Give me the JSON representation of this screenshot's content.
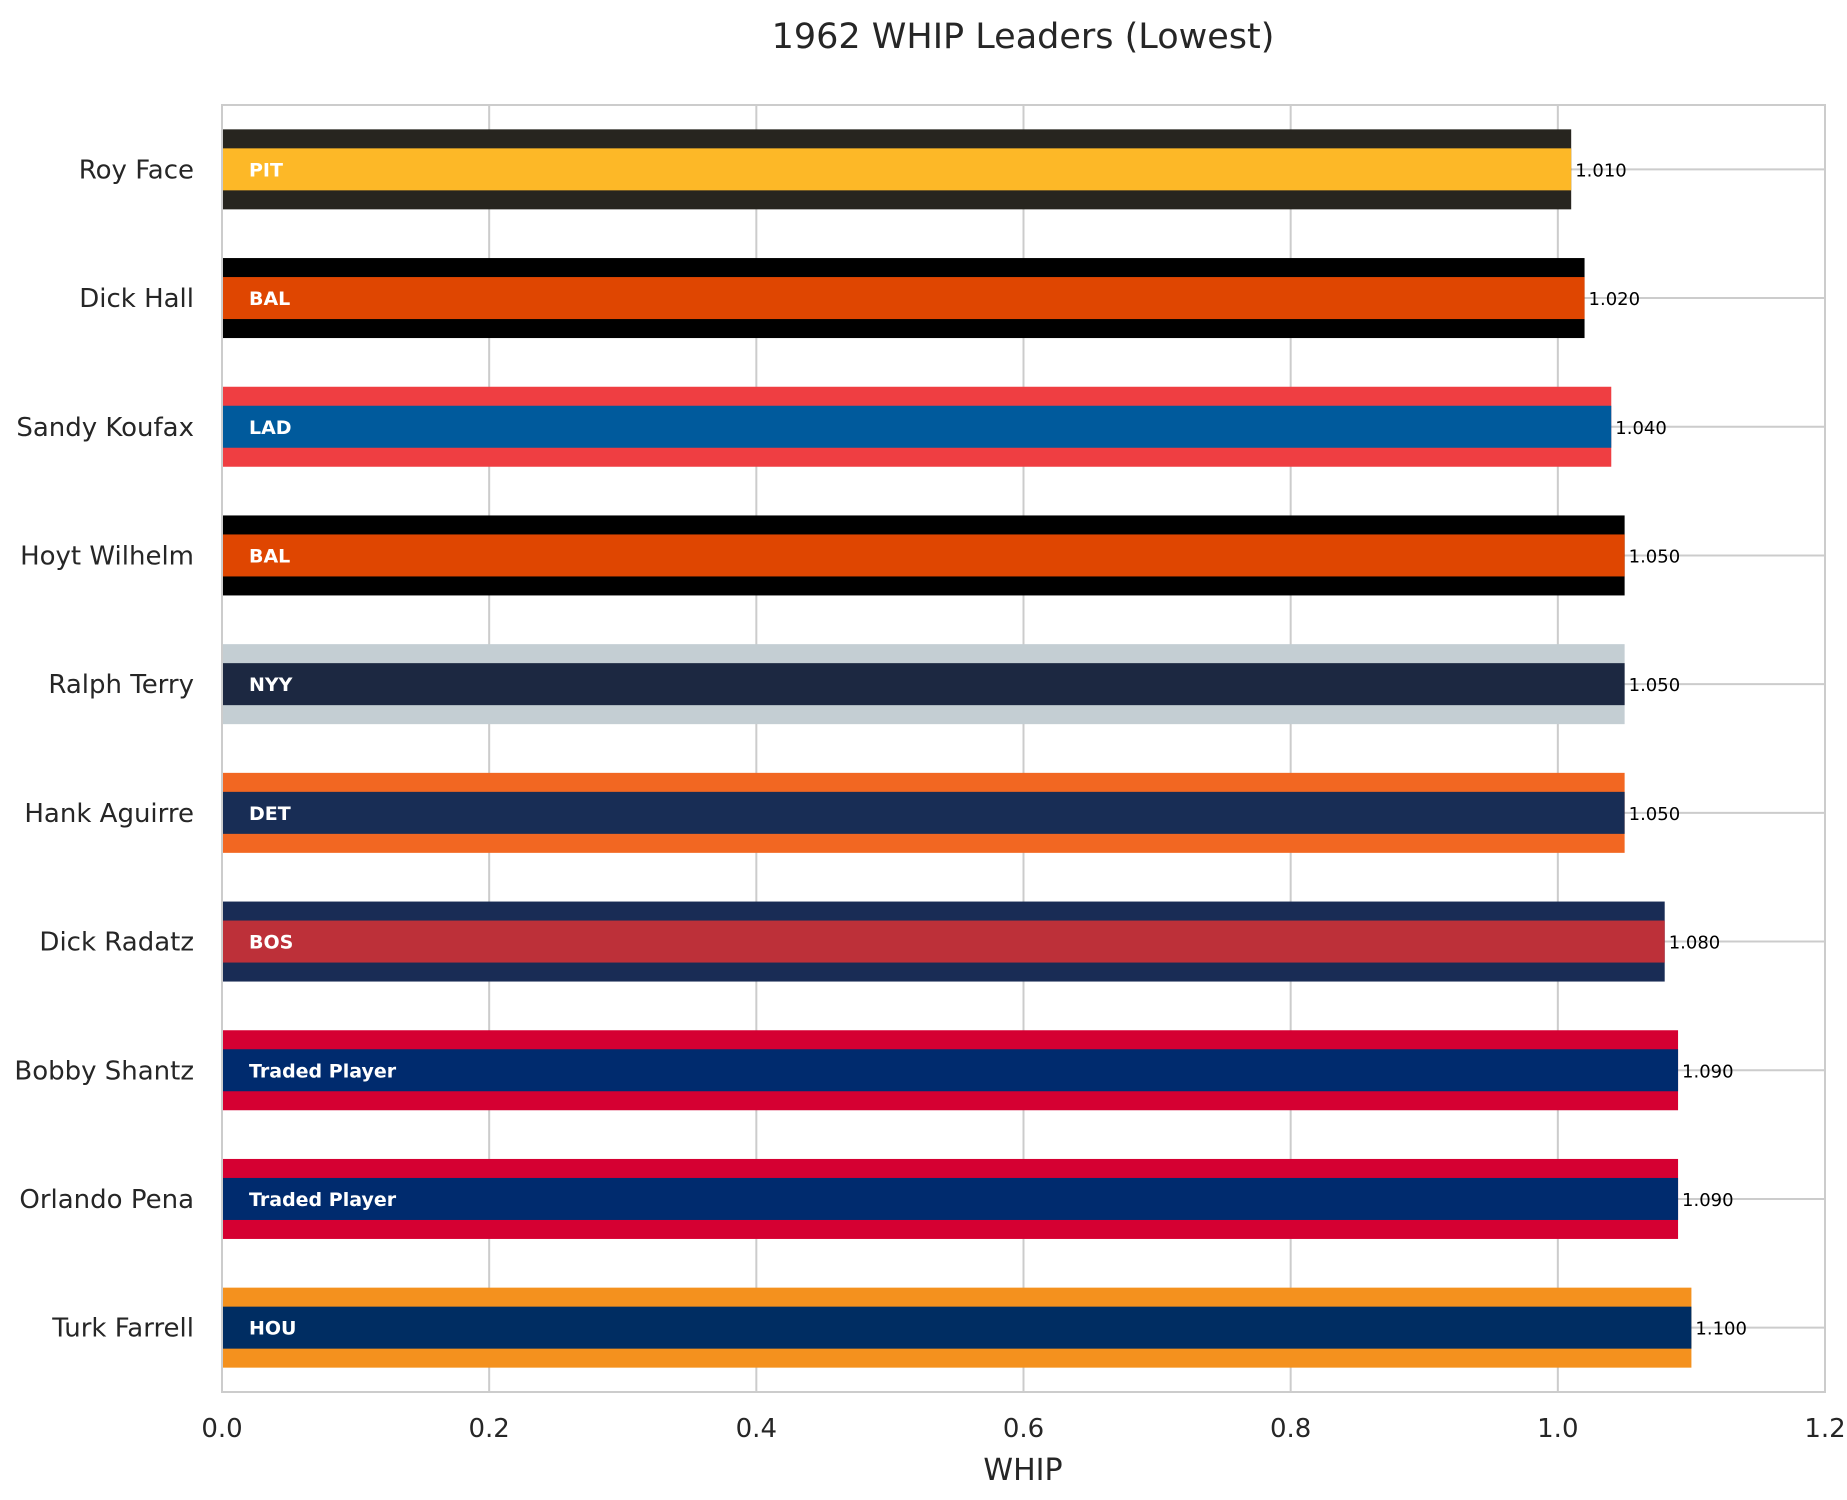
{
  "chart_data": {
    "type": "bar",
    "orientation": "horizontal",
    "title": "1962 WHIP Leaders (Lowest)",
    "xlabel": "WHIP",
    "ylabel": "",
    "xlim": [
      0,
      1.2
    ],
    "x_ticks": [
      "0.0",
      "0.2",
      "0.4",
      "0.6",
      "0.8",
      "1.0",
      "1.2"
    ],
    "grid": true,
    "legend": "none",
    "bars": [
      {
        "player": "Roy Face",
        "team": "PIT",
        "value": 1.01,
        "value_label": "1.010",
        "primary_color": "#FDB827",
        "secondary_color": "#27251F"
      },
      {
        "player": "Dick Hall",
        "team": "BAL",
        "value": 1.02,
        "value_label": "1.020",
        "primary_color": "#DF4601",
        "secondary_color": "#000000"
      },
      {
        "player": "Sandy Koufax",
        "team": "LAD",
        "value": 1.04,
        "value_label": "1.040",
        "primary_color": "#005A9C",
        "secondary_color": "#EF3E42"
      },
      {
        "player": "Hoyt Wilhelm",
        "team": "BAL",
        "value": 1.05,
        "value_label": "1.050",
        "primary_color": "#DF4601",
        "secondary_color": "#000000"
      },
      {
        "player": "Ralph Terry",
        "team": "NYY",
        "value": 1.05,
        "value_label": "1.050",
        "primary_color": "#1C2841",
        "secondary_color": "#C4CED3"
      },
      {
        "player": "Hank Aguirre",
        "team": "DET",
        "value": 1.05,
        "value_label": "1.050",
        "primary_color": "#182D55",
        "secondary_color": "#F26722"
      },
      {
        "player": "Dick Radatz",
        "team": "BOS",
        "value": 1.08,
        "value_label": "1.080",
        "primary_color": "#BD3039",
        "secondary_color": "#192C55"
      },
      {
        "player": "Bobby Shantz",
        "team": "Traded Player",
        "value": 1.09,
        "value_label": "1.090",
        "primary_color": "#002B6E",
        "secondary_color": "#D50032"
      },
      {
        "player": "Orlando Pena",
        "team": "Traded Player",
        "value": 1.09,
        "value_label": "1.090",
        "primary_color": "#002B6E",
        "secondary_color": "#D50032"
      },
      {
        "player": "Turk Farrell",
        "team": "HOU",
        "value": 1.1,
        "value_label": "1.100",
        "primary_color": "#002D62",
        "secondary_color": "#F4911E"
      }
    ]
  }
}
